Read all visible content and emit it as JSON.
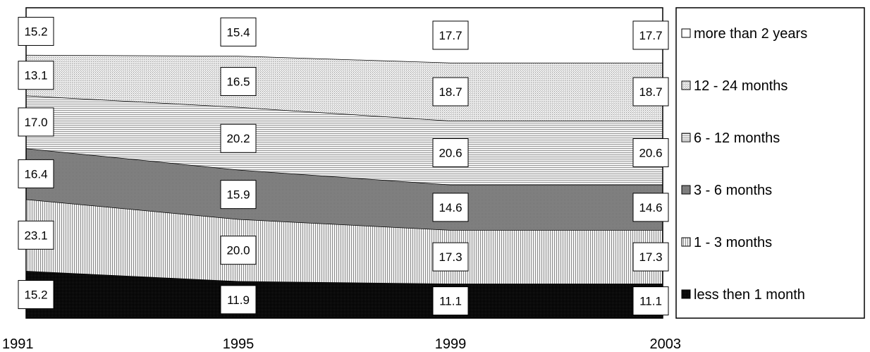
{
  "chart_data": {
    "type": "area",
    "stacked": true,
    "percent": true,
    "categories": [
      "1991",
      "1995",
      "1999",
      "2003"
    ],
    "series": [
      {
        "name": "less then 1 month",
        "values": [
          15.2,
          11.9,
          11.1,
          11.1
        ],
        "pattern": "solid-dark"
      },
      {
        "name": "1 - 3 months",
        "values": [
          23.1,
          20.0,
          17.3,
          17.3
        ],
        "pattern": "vertical-lines"
      },
      {
        "name": "3 - 6 months",
        "values": [
          16.4,
          15.9,
          14.6,
          14.6
        ],
        "pattern": "dense-dots"
      },
      {
        "name": "6 - 12 months",
        "values": [
          17.0,
          20.2,
          20.6,
          20.6
        ],
        "pattern": "horizontal-lines"
      },
      {
        "name": "12 - 24 months",
        "values": [
          13.1,
          16.5,
          18.7,
          18.7
        ],
        "pattern": "light-dots"
      },
      {
        "name": "more than 2 years",
        "values": [
          15.2,
          15.4,
          17.7,
          17.7
        ],
        "pattern": "white"
      }
    ],
    "data_labels": true,
    "legend_position": "right",
    "grid": false,
    "title": "",
    "xlabel": "",
    "ylabel": ""
  }
}
